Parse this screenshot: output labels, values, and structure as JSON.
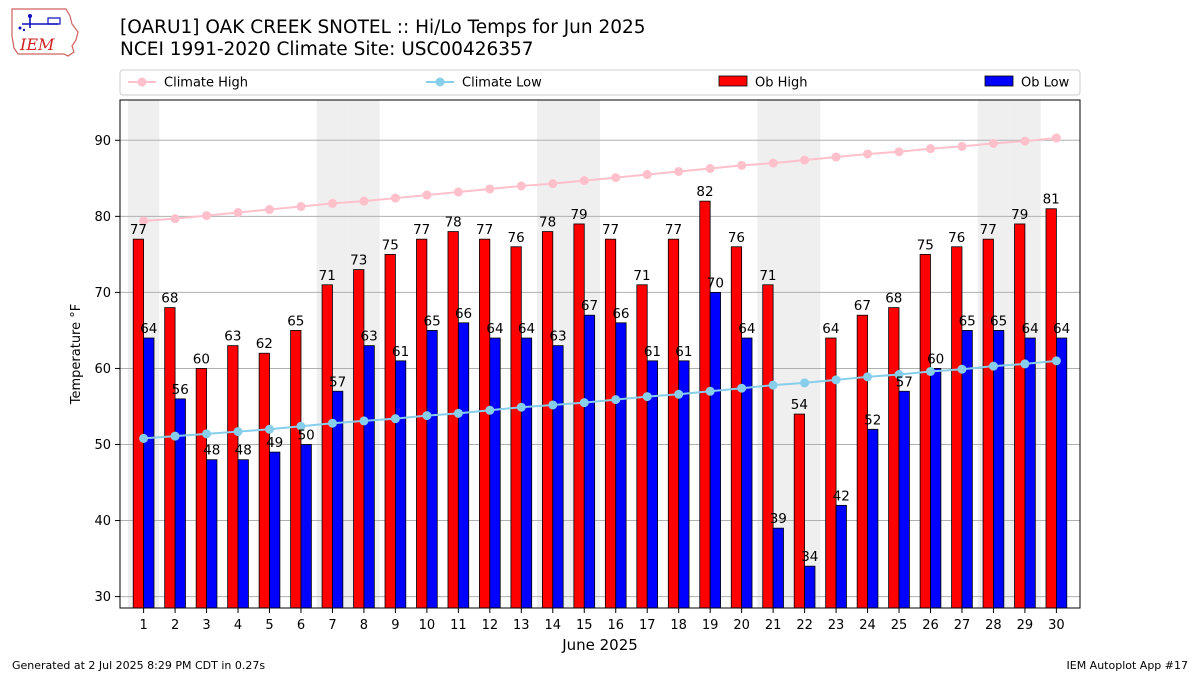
{
  "header": {
    "title_line1": "[OARU1] OAK CREEK SNOTEL :: Hi/Lo Temps for Jun 2025",
    "title_line2": "NCEI 1991-2020 Climate Site: USC00426357"
  },
  "logo": {
    "text": "IEM",
    "icon": "iem-iowa-logo-icon"
  },
  "footer": {
    "left": "Generated at 2 Jul 2025 8:29 PM CDT in 0.27s",
    "right": "IEM Autoplot App #17"
  },
  "colors": {
    "ob_high": "#ff0000",
    "ob_low": "#0000ff",
    "climate_high": "#ffc0cb",
    "climate_low": "#87ceeb",
    "weekend_band": "#efefef",
    "grid": "#b0b0b0"
  },
  "chart_data": {
    "type": "bar",
    "xlabel": "June 2025",
    "ylabel": "Temperature °F",
    "ylim": [
      28.5,
      95.3
    ],
    "yticks": [
      30,
      40,
      50,
      60,
      70,
      80,
      90
    ],
    "grid": "horizontal",
    "legend_position": "top",
    "categories": [
      "1",
      "2",
      "3",
      "4",
      "5",
      "6",
      "7",
      "8",
      "9",
      "10",
      "11",
      "12",
      "13",
      "14",
      "15",
      "16",
      "17",
      "18",
      "19",
      "20",
      "21",
      "22",
      "23",
      "24",
      "25",
      "26",
      "27",
      "28",
      "29",
      "30"
    ],
    "shaded_days": [
      "1",
      "7",
      "8",
      "14",
      "15",
      "21",
      "22",
      "28",
      "29"
    ],
    "series": [
      {
        "name": "Climate High",
        "kind": "line",
        "values": [
          79.4,
          79.7,
          80.1,
          80.5,
          80.9,
          81.3,
          81.7,
          82.0,
          82.4,
          82.8,
          83.2,
          83.6,
          84.0,
          84.3,
          84.7,
          85.1,
          85.5,
          85.9,
          86.3,
          86.7,
          87.0,
          87.4,
          87.8,
          88.2,
          88.5,
          88.9,
          89.2,
          89.6,
          89.9,
          90.3
        ]
      },
      {
        "name": "Climate Low",
        "kind": "line",
        "values": [
          50.8,
          51.1,
          51.4,
          51.7,
          52.0,
          52.4,
          52.8,
          53.1,
          53.4,
          53.8,
          54.1,
          54.5,
          54.9,
          55.2,
          55.5,
          55.9,
          56.3,
          56.6,
          57.0,
          57.4,
          57.8,
          58.1,
          58.5,
          58.9,
          59.2,
          59.6,
          59.9,
          60.3,
          60.6,
          61.0
        ]
      },
      {
        "name": "Ob High",
        "kind": "bar",
        "values": [
          77,
          68,
          60,
          63,
          62,
          65,
          71,
          73,
          75,
          77,
          78,
          77,
          76,
          78,
          79,
          77,
          71,
          77,
          82,
          76,
          71,
          54,
          64,
          67,
          68,
          75,
          76,
          77,
          79,
          81
        ],
        "labels": [
          "77",
          "68",
          "60",
          "63",
          "62",
          "65",
          "71",
          "73",
          "75",
          "77",
          "78",
          "77",
          "76",
          "78",
          "79",
          "77",
          "71",
          "77",
          "82",
          "76",
          "71",
          "54",
          "64",
          "67",
          "68",
          "75",
          "76",
          "77",
          "79",
          "81"
        ]
      },
      {
        "name": "Ob Low",
        "kind": "bar",
        "values": [
          64,
          56,
          48,
          48,
          49,
          50,
          57,
          63,
          61,
          65,
          66,
          64,
          64,
          63,
          67,
          66,
          61,
          61,
          70,
          64,
          39,
          34,
          42,
          52,
          57,
          60,
          65,
          65,
          64,
          64
        ],
        "labels": [
          "64",
          "56",
          "48",
          "48",
          "49",
          "50",
          "57",
          "63",
          "61",
          "65",
          "66",
          "64",
          "64",
          "63",
          "67",
          "66",
          "61",
          "61",
          "70",
          "64",
          "39",
          "34",
          "42",
          "52",
          "57",
          "60",
          "65",
          "65",
          "64",
          "64"
        ]
      }
    ]
  }
}
